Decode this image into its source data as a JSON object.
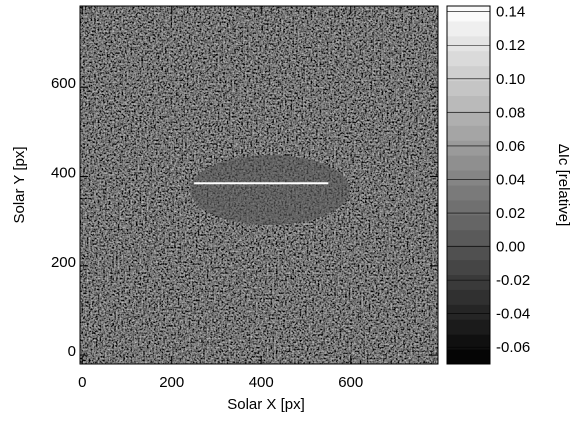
{
  "chart_data": {
    "type": "image",
    "xlabel": "Solar X [px]",
    "ylabel": "Solar Y [px]",
    "xlim": [
      -5,
      795
    ],
    "ylim": [
      -20,
      782
    ],
    "xticks": [
      0,
      200,
      400,
      600
    ],
    "yticks": [
      0,
      200,
      400,
      600
    ],
    "colormap": "gray",
    "colorbar_label": "ΔIc [relative]",
    "clim": [
      -0.07,
      0.1434
    ],
    "colorbar_ticks": [
      {
        "value": 0.14,
        "label": "0.14"
      },
      {
        "value": 0.12,
        "label": "0.12"
      },
      {
        "value": 0.1,
        "label": "0.10"
      },
      {
        "value": 0.08,
        "label": "0.08"
      },
      {
        "value": 0.06,
        "label": "0.06"
      },
      {
        "value": 0.04,
        "label": "0.04"
      },
      {
        "value": 0.02,
        "label": "0.02"
      },
      {
        "value": 0,
        "label": "0.00"
      },
      {
        "value": -0.02,
        "label": "-0.02"
      },
      {
        "value": -0.04,
        "label": "-0.04"
      },
      {
        "value": -0.06,
        "label": "-0.06"
      }
    ],
    "slit": {
      "x": [
        250,
        550
      ],
      "y": [
        385,
        385
      ],
      "color": "#ffffff"
    }
  }
}
